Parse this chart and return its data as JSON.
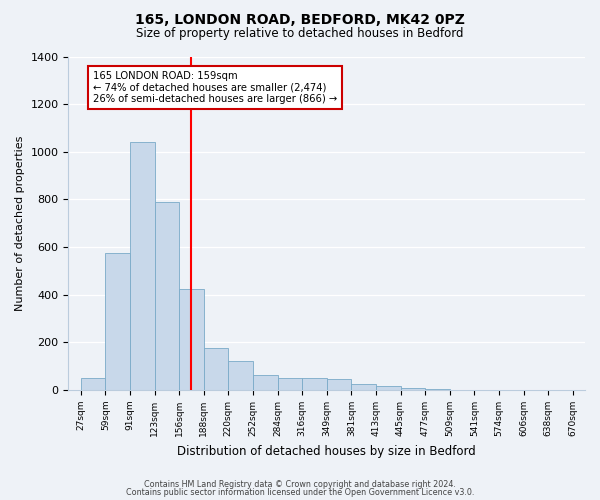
{
  "title1": "165, LONDON ROAD, BEDFORD, MK42 0PZ",
  "title2": "Size of property relative to detached houses in Bedford",
  "xlabel": "Distribution of detached houses by size in Bedford",
  "ylabel": "Number of detached properties",
  "bin_labels": [
    "27sqm",
    "59sqm",
    "91sqm",
    "123sqm",
    "156sqm",
    "188sqm",
    "220sqm",
    "252sqm",
    "284sqm",
    "316sqm",
    "349sqm",
    "381sqm",
    "413sqm",
    "445sqm",
    "477sqm",
    "509sqm",
    "541sqm",
    "574sqm",
    "606sqm",
    "638sqm",
    "670sqm"
  ],
  "bar_values": [
    50,
    575,
    1040,
    790,
    425,
    175,
    120,
    65,
    50,
    50,
    48,
    25,
    15,
    8,
    3,
    1,
    0,
    0,
    0,
    0
  ],
  "bar_color": "#c8d8ea",
  "bar_edge_color": "#7aaac8",
  "reference_line_x": 4,
  "annotation_title": "165 LONDON ROAD: 159sqm",
  "annotation_line1": "← 74% of detached houses are smaller (2,474)",
  "annotation_line2": "26% of semi-detached houses are larger (866) →",
  "annotation_box_color": "#ffffff",
  "annotation_box_edge_color": "#cc0000",
  "ylim": [
    0,
    1400
  ],
  "yticks": [
    0,
    200,
    400,
    600,
    800,
    1000,
    1200,
    1400
  ],
  "footer1": "Contains HM Land Registry data © Crown copyright and database right 2024.",
  "footer2": "Contains public sector information licensed under the Open Government Licence v3.0.",
  "background_color": "#eef2f7",
  "grid_color": "#ffffff",
  "spine_color": "#bbccdd"
}
